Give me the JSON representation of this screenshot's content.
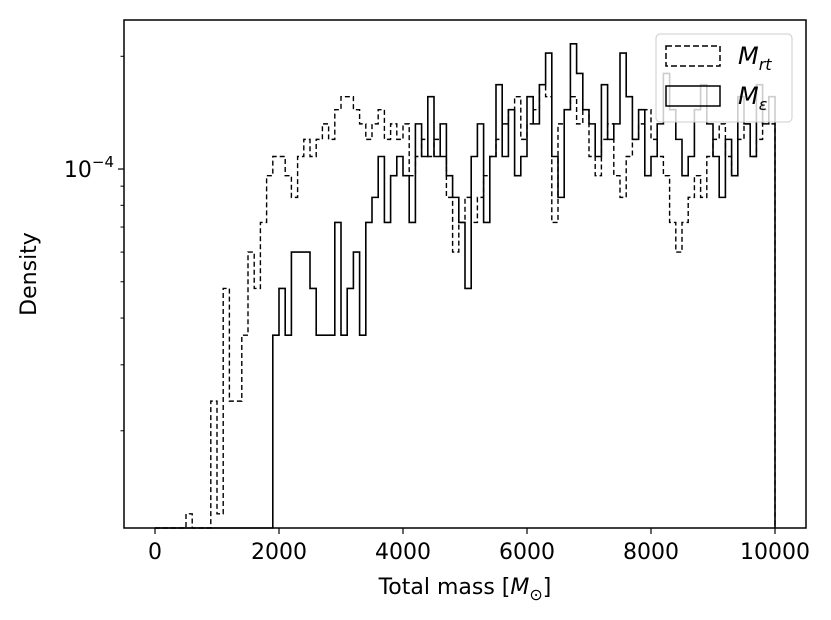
{
  "chart_data": {
    "type": "histogram",
    "title": "",
    "xlabel": "Total mass [M_⊙]",
    "xlabel_parts": {
      "text": "Total mass [",
      "symbol": "M",
      "subscript": "⊙",
      "close": "]"
    },
    "ylabel": "Density",
    "xlim": [
      -500,
      10500
    ],
    "ylim": [
      1.1e-05,
      0.00025
    ],
    "y_scale": "log",
    "x_ticks": [
      0,
      2000,
      4000,
      6000,
      8000,
      10000
    ],
    "x_tick_labels": [
      "0",
      "2000",
      "4000",
      "6000",
      "8000",
      "10000"
    ],
    "y_major_ticks": [
      0.0001
    ],
    "y_major_tick_labels": [
      {
        "base": "10",
        "exp": "−4"
      }
    ],
    "y_minor_ticks": [
      2e-05,
      3e-05,
      4e-05,
      5e-05,
      6e-05,
      7e-05,
      8e-05,
      9e-05,
      0.0002
    ],
    "grid": false,
    "legend_position": "top-right",
    "bin_edges_range": [
      0,
      10000
    ],
    "bin_width": 100,
    "series": [
      {
        "name": "M_rt",
        "legend_parts": {
          "symbol": "M",
          "subscript": "rt"
        },
        "style": "dashed",
        "color": "#000000",
        "values": [
          0,
          0,
          0,
          0,
          0,
          1.2e-05,
          0,
          0,
          0,
          2.4e-05,
          1.2e-05,
          4.8e-05,
          2.4e-05,
          2.4e-05,
          3.6e-05,
          6e-05,
          4.8e-05,
          7.2e-05,
          9.6e-05,
          0.000108,
          0.000108,
          9.6e-05,
          8.4e-05,
          0.000108,
          0.00012,
          0.000108,
          0.00012,
          0.000132,
          0.00012,
          0.000144,
          0.000156,
          0.000156,
          0.000144,
          0.000132,
          0.00012,
          0.000132,
          0.000144,
          0.00012,
          0.000132,
          0.00012,
          0.000132,
          9.6e-05,
          0.000108,
          0.00012,
          0.000108,
          0.00012,
          0.000108,
          8.4e-05,
          6e-05,
          7.2e-05,
          8.4e-05,
          7.2e-05,
          8.4e-05,
          9.6e-05,
          0.000108,
          0.00012,
          0.000132,
          0.000144,
          0.000156,
          0.00012,
          0.000132,
          0.000144,
          0.000168,
          0.000156,
          7.2e-05,
          0.000132,
          0.000144,
          0.000156,
          0.000132,
          0.000144,
          0.000108,
          9.6e-05,
          0.00012,
          0.000132,
          9.6e-05,
          8.4e-05,
          0.000108,
          0.00012,
          0.000132,
          0.000144,
          0.00012,
          0.000108,
          9.6e-05,
          7.2e-05,
          6e-05,
          7.2e-05,
          8.4e-05,
          9.6e-05,
          8.4e-05,
          0.000108,
          0.00012,
          0.000132,
          0.000108,
          9.6e-05,
          0.00012,
          0.000132,
          0.000108,
          0.00012,
          0.000144,
          0.000132
        ]
      },
      {
        "name": "M_ε",
        "legend_parts": {
          "symbol": "M",
          "subscript": "ε"
        },
        "style": "solid",
        "color": "#000000",
        "values": [
          0,
          0,
          0,
          0,
          0,
          0,
          0,
          0,
          0,
          0,
          0,
          0,
          0,
          0,
          0,
          0,
          0,
          0,
          0,
          0,
          0,
          0,
          0,
          0,
          0,
          0,
          0,
          0,
          0,
          0,
          0,
          0,
          0,
          0,
          0,
          0,
          0,
          0,
          0,
          0,
          0,
          0,
          0,
          0,
          0,
          0,
          0,
          0,
          0,
          0,
          0,
          0,
          0,
          0,
          0,
          0,
          0,
          0,
          0,
          0,
          0,
          0,
          0,
          0,
          0,
          0,
          0,
          0,
          0,
          0,
          0,
          0,
          0,
          0,
          0,
          0,
          0,
          0,
          0,
          0,
          0,
          0,
          0,
          0,
          0,
          0,
          0,
          0,
          0,
          0,
          0,
          0,
          0,
          0,
          0,
          0,
          0,
          0,
          0,
          0
        ],
        "values_2": [
          0,
          0,
          0,
          0,
          0,
          0,
          0,
          0,
          0,
          0,
          0,
          0,
          0,
          0,
          0,
          0,
          0,
          0,
          0,
          3.6e-05,
          4.8e-05,
          3.6e-05,
          6e-05,
          6e-05,
          6e-05,
          4.8e-05,
          3.6e-05,
          3.6e-05,
          3.6e-05,
          7.2e-05,
          3.6e-05,
          4.8e-05,
          6e-05,
          3.6e-05,
          7.2e-05,
          8.4e-05,
          0.000108,
          7.2e-05,
          9.6e-05,
          0.000108,
          9.6e-05,
          7.2e-05,
          0.000132,
          0.000108,
          0.000156,
          0.000108,
          0.000132,
          9.6e-05,
          8.4e-05,
          7.2e-05,
          4.8e-05,
          0.000108,
          0.000132,
          7.2e-05,
          0.000108,
          0.000168,
          0.000108,
          0.000144,
          9.6e-05,
          0.000108,
          0.000156,
          0.000132,
          0.000168,
          0.000204,
          0.000108,
          8.4e-05,
          0.000144,
          0.000216,
          0.00018,
          0.000144,
          0.000132,
          0.000108,
          0.000168,
          0.00012,
          0.000132,
          0.000204,
          0.000156,
          0.00012,
          0.000144,
          9.6e-05,
          0.000108,
          0.000132,
          0.00018,
          0.000144,
          0.00012,
          9.6e-05,
          0.000108,
          0.000144,
          0.000168,
          0.000132,
          0.000108,
          8.4e-05,
          0.00012,
          9.6e-05,
          0.000156,
          0.000132,
          0.000108,
          0.000168,
          0.000132,
          0.000156
        ]
      }
    ]
  }
}
